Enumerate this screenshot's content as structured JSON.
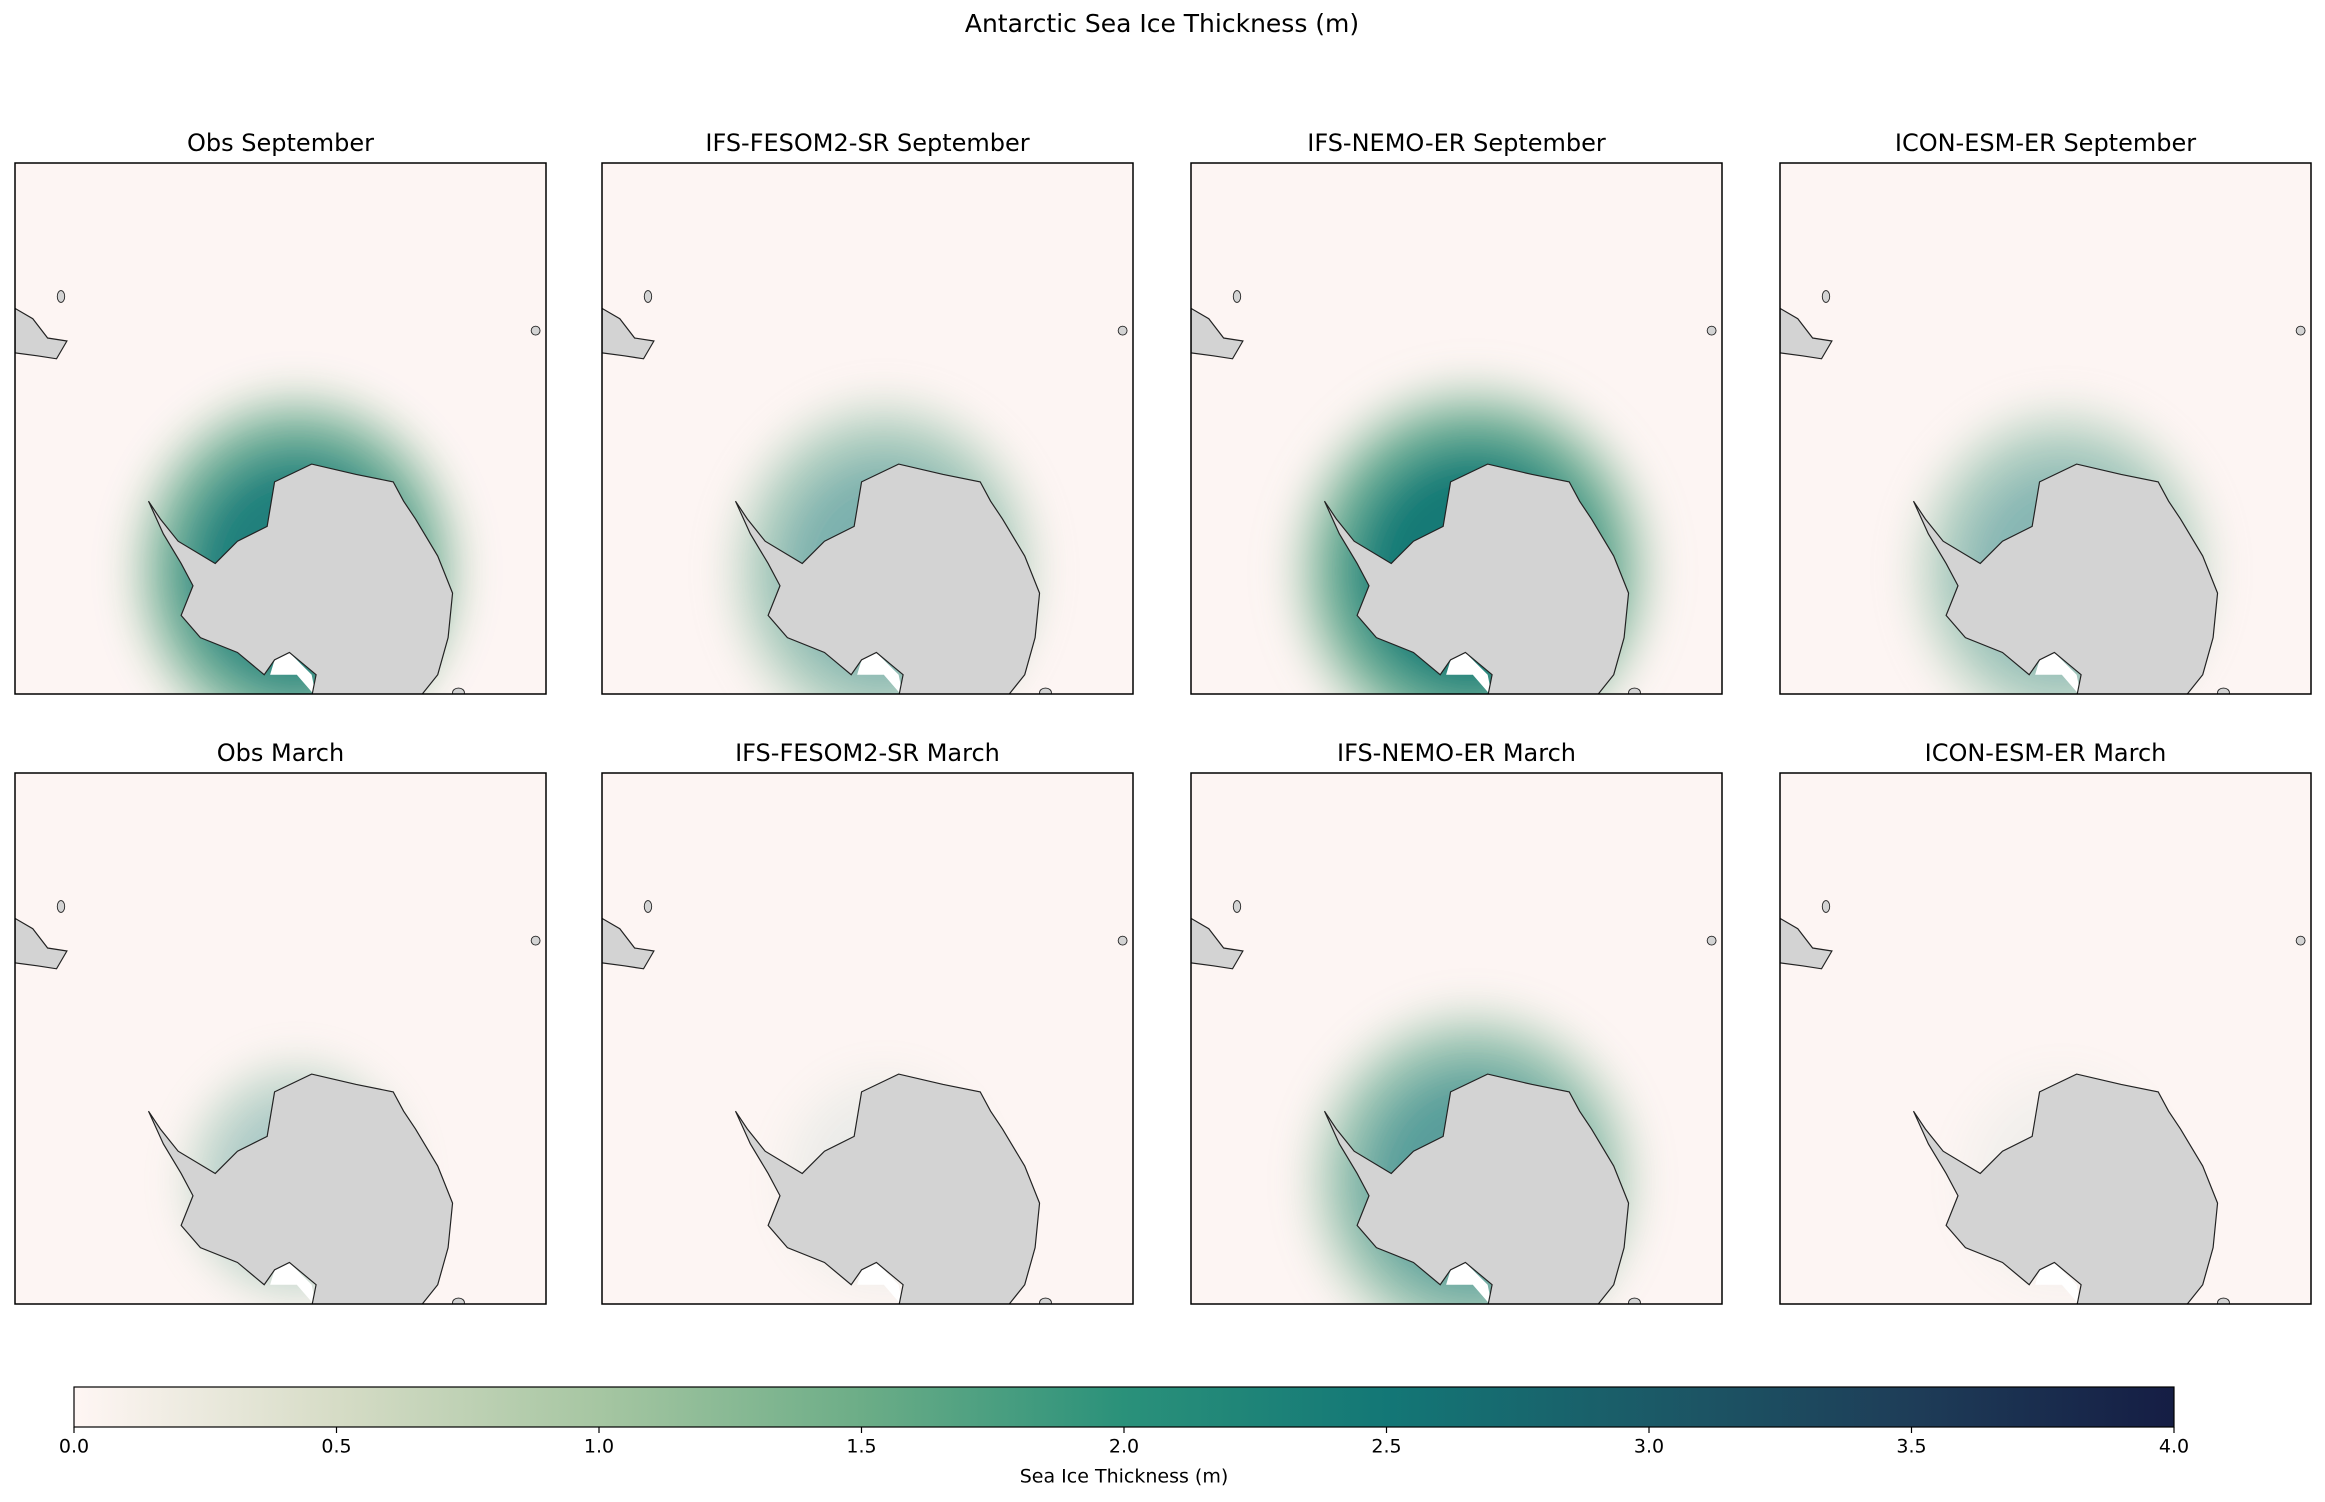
{
  "title": "Antarctic Sea Ice Thickness (m)",
  "panels": [
    "Obs September",
    "IFS-FESOM2-SR September",
    "IFS-NEMO-ER September",
    "ICON-ESM-ER September",
    "Obs March",
    "IFS-FESOM2-SR March",
    "IFS-NEMO-ER March",
    "ICON-ESM-ER March"
  ],
  "colorbar": {
    "label": "Sea Ice Thickness (m)",
    "lim": [
      0,
      4
    ],
    "ticks": [
      {
        "value": 0,
        "label": "0.0"
      },
      0.5,
      {
        "value": 1,
        "label": "1.0"
      },
      1.5,
      {
        "value": 2,
        "label": "2.0"
      },
      2.5,
      {
        "value": 3,
        "label": "3.0"
      },
      3.5,
      {
        "value": 4,
        "label": "4.0"
      }
    ]
  }
}
